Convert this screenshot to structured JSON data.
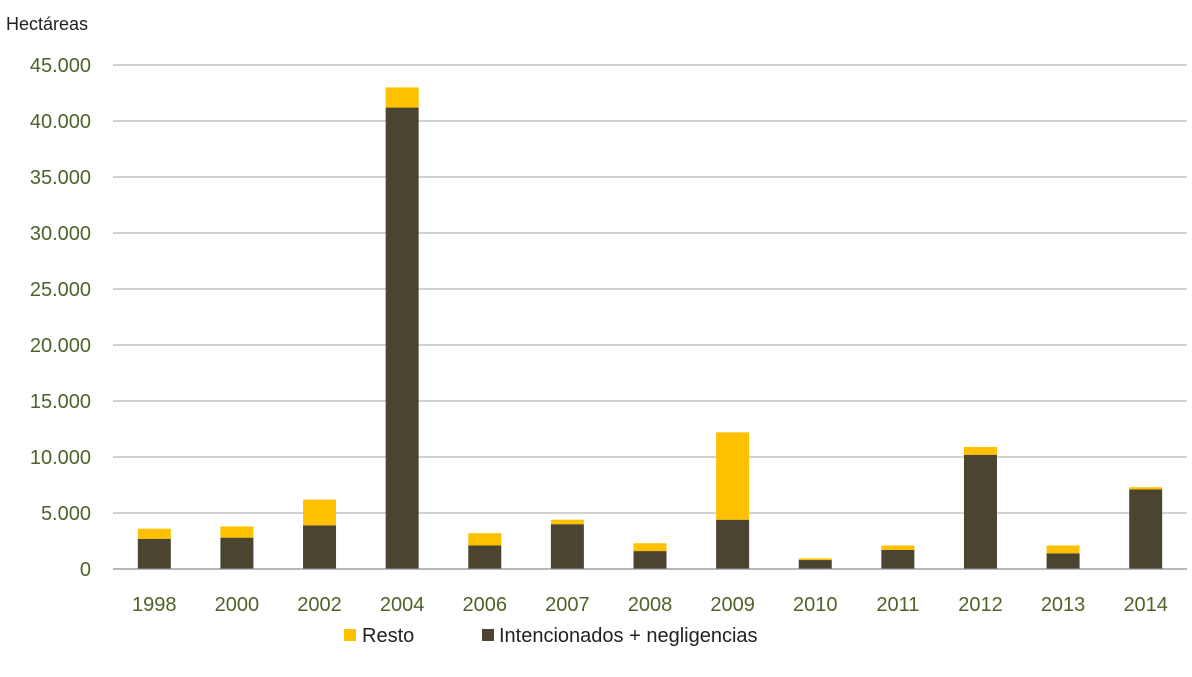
{
  "chart_data": {
    "type": "bar",
    "stacked": true,
    "ylabel": "Hectáreas",
    "xlabel": "",
    "title": "",
    "ylim": [
      0,
      45000
    ],
    "yticks": [
      "0",
      "5.000",
      "10.000",
      "15.000",
      "20.000",
      "25.000",
      "30.000",
      "35.000",
      "40.000",
      "45.000"
    ],
    "categories": [
      "1998",
      "2000",
      "2002",
      "2004",
      "2006",
      "2007",
      "2008",
      "2009",
      "2010",
      "2011",
      "2012",
      "2013",
      "2014"
    ],
    "series": [
      {
        "name": "Intencionados + negligencias",
        "color": "#4a4430",
        "values": [
          2700,
          2800,
          3900,
          41200,
          2100,
          4000,
          1600,
          4400,
          800,
          1700,
          10200,
          1400,
          7100
        ]
      },
      {
        "name": "Resto",
        "color": "#ffc000",
        "values": [
          900,
          1000,
          2300,
          1800,
          1100,
          400,
          700,
          7800,
          150,
          400,
          700,
          700,
          200
        ]
      }
    ],
    "legend": {
      "position": "bottom",
      "order": [
        "Resto",
        "Intencionados + negligencias"
      ]
    },
    "grid": true
  }
}
